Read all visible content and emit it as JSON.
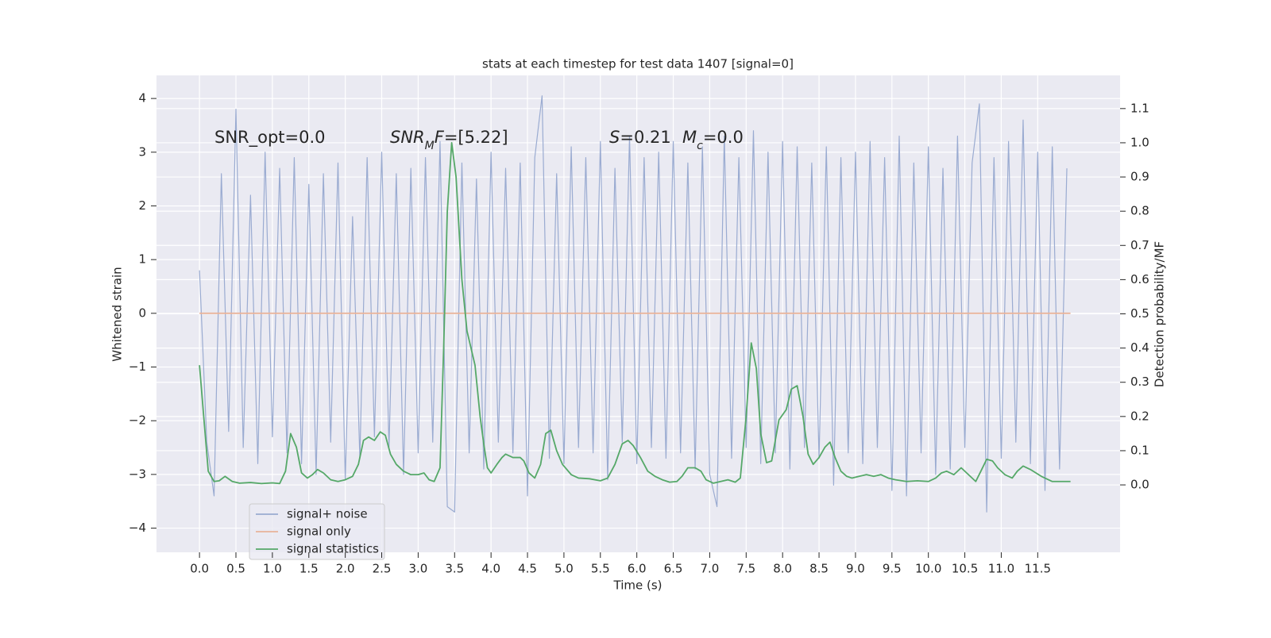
{
  "chart_data": {
    "type": "line",
    "title": "stats at each timestep for test data 1407 [signal=0]",
    "xlabel": "Time (s)",
    "ylabel": "Whitened strain",
    "y2label": "Detection probability/MF",
    "xlim": [
      -0.59,
      12.63
    ],
    "ylim": [
      -4.45,
      4.43
    ],
    "y2lim": [
      -0.197,
      1.197
    ],
    "grid": true,
    "legend": "lower left",
    "xticks": [
      {
        "value": 0,
        "label": "0.0"
      },
      0.5,
      {
        "value": 1,
        "label": "1.0"
      },
      1.5,
      {
        "value": 2,
        "label": "2.0"
      },
      2.5,
      {
        "value": 3,
        "label": "3.0"
      },
      3.5,
      {
        "value": 4,
        "label": "4.0"
      },
      4.5,
      {
        "value": 5,
        "label": "5.0"
      },
      5.5,
      {
        "value": 6,
        "label": "6.0"
      },
      6.5,
      {
        "value": 7,
        "label": "7.0"
      },
      7.5,
      {
        "value": 8,
        "label": "8.0"
      },
      8.5,
      {
        "value": 9,
        "label": "9.0"
      },
      9.5,
      {
        "value": 10,
        "label": "10.0"
      },
      10.5,
      {
        "value": 11,
        "label": "11.0"
      },
      11.5
    ],
    "yticks": [
      {
        "value": -4,
        "label": "−4"
      },
      {
        "value": -3,
        "label": "−3"
      },
      {
        "value": -2,
        "label": "−2"
      },
      {
        "value": -1,
        "label": "−1"
      },
      0,
      1,
      2,
      3,
      4
    ],
    "y2ticks": [
      {
        "value": 0,
        "label": "0.0"
      },
      0.1,
      0.2,
      0.3,
      0.4,
      0.5,
      0.6,
      0.7,
      0.8,
      0.9,
      {
        "value": 1,
        "label": "1.0"
      },
      1.1
    ],
    "annotations": [
      [
        {
          "text": "SNR_opt=0.0"
        }
      ],
      [
        {
          "text": "SNR",
          "italic": true
        },
        {
          "text": "M",
          "italic": true,
          "sub": true
        },
        {
          "text": "F",
          "italic": true
        },
        {
          "text": "=[5.22]"
        }
      ],
      [
        {
          "text": "S",
          "italic": true
        },
        {
          "text": "=0.21"
        }
      ],
      [
        {
          "text": "M",
          "italic": true
        },
        {
          "text": "c",
          "italic": true,
          "sub": true
        },
        {
          "text": "=0.0"
        }
      ]
    ],
    "series": [
      {
        "name": "signal+ noise",
        "color": "#9aabd1",
        "axis": "y",
        "x": [
          0,
          0.1,
          0.2,
          0.3,
          0.4,
          0.5,
          0.6,
          0.7,
          0.8,
          0.9,
          1,
          1.1,
          1.2,
          1.3,
          1.4,
          1.5,
          1.6,
          1.7,
          1.8,
          1.9,
          2,
          2.1,
          2.2,
          2.3,
          2.4,
          2.5,
          2.6,
          2.7,
          2.8,
          2.9,
          3,
          3.1,
          3.2,
          3.3,
          3.4,
          3.5,
          3.6,
          3.7,
          3.8,
          3.9,
          4,
          4.1,
          4.2,
          4.3,
          4.4,
          4.5,
          4.6,
          4.7,
          4.8,
          4.9,
          5,
          5.1,
          5.2,
          5.3,
          5.4,
          5.5,
          5.6,
          5.7,
          5.8,
          5.9,
          6,
          6.1,
          6.2,
          6.3,
          6.4,
          6.5,
          6.6,
          6.7,
          6.8,
          6.9,
          7,
          7.1,
          7.2,
          7.3,
          7.4,
          7.5,
          7.6,
          7.7,
          7.8,
          7.9,
          8,
          8.1,
          8.2,
          8.3,
          8.4,
          8.5,
          8.6,
          8.7,
          8.8,
          8.9,
          9,
          9.1,
          9.2,
          9.3,
          9.4,
          9.5,
          9.6,
          9.7,
          9.8,
          9.9,
          10,
          10.1,
          10.2,
          10.3,
          10.4,
          10.5,
          10.6,
          10.7,
          10.8,
          10.9,
          11,
          11.1,
          11.2,
          11.3,
          11.4,
          11.5,
          11.6,
          11.7,
          11.8,
          11.9
        ],
        "values": [
          0.8,
          -2.4,
          -3.4,
          2.6,
          -2.2,
          3.8,
          -2.5,
          2.2,
          -2.8,
          3.0,
          -2.3,
          2.7,
          -2.6,
          2.9,
          -2.8,
          2.4,
          -3.0,
          2.6,
          -2.4,
          2.8,
          -3.1,
          1.8,
          -2.7,
          2.9,
          -2.3,
          3.0,
          -2.5,
          2.6,
          -3.0,
          2.7,
          -2.6,
          2.9,
          -2.4,
          3.2,
          -3.6,
          -3.7,
          2.8,
          -2.6,
          2.5,
          -2.9,
          3.0,
          -2.4,
          2.7,
          -2.6,
          2.8,
          -3.4,
          2.9,
          4.05,
          -2.7,
          2.6,
          -2.8,
          3.1,
          -2.5,
          2.9,
          -2.6,
          3.2,
          -3.1,
          2.7,
          -2.4,
          3.3,
          -2.8,
          2.9,
          -2.5,
          3.0,
          -2.7,
          3.2,
          -2.6,
          2.8,
          -2.9,
          3.1,
          -3.0,
          -3.6,
          3.3,
          -2.7,
          2.9,
          -2.5,
          3.4,
          -2.8,
          3.0,
          -2.6,
          3.2,
          -2.9,
          3.1,
          -2.5,
          2.8,
          -2.7,
          3.1,
          -3.2,
          2.9,
          -2.6,
          3.0,
          -2.8,
          3.2,
          -2.5,
          2.9,
          -3.3,
          3.3,
          -3.4,
          2.8,
          -2.6,
          3.1,
          -3.0,
          2.7,
          -2.9,
          3.3,
          -2.5,
          2.8,
          3.9,
          -3.7,
          2.9,
          -2.7,
          3.2,
          -2.4,
          3.6,
          -2.8,
          3.0,
          -3.3,
          3.1,
          -2.9,
          2.7
        ]
      },
      {
        "name": "signal only",
        "color": "#e8b39a",
        "axis": "y",
        "x": [
          0,
          11.95
        ],
        "values": [
          0,
          0
        ]
      },
      {
        "name": "signal statistics",
        "color": "#55a868",
        "axis": "y2",
        "x": [
          0,
          0.05,
          0.12,
          0.2,
          0.27,
          0.35,
          0.45,
          0.55,
          0.7,
          0.85,
          1,
          1.1,
          1.18,
          1.25,
          1.33,
          1.4,
          1.48,
          1.55,
          1.62,
          1.7,
          1.8,
          1.9,
          2,
          2.1,
          2.18,
          2.25,
          2.32,
          2.4,
          2.48,
          2.55,
          2.62,
          2.7,
          2.8,
          2.9,
          3,
          3.08,
          3.15,
          3.22,
          3.3,
          3.35,
          3.4,
          3.46,
          3.52,
          3.6,
          3.67,
          3.78,
          3.85,
          3.9,
          3.95,
          4,
          4.08,
          4.15,
          4.2,
          4.3,
          4.4,
          4.45,
          4.52,
          4.6,
          4.68,
          4.75,
          4.82,
          4.9,
          4.98,
          5.1,
          5.2,
          5.35,
          5.5,
          5.6,
          5.7,
          5.8,
          5.88,
          5.95,
          6.05,
          6.15,
          6.25,
          6.35,
          6.45,
          6.55,
          6.62,
          6.7,
          6.8,
          6.88,
          6.95,
          7.05,
          7.15,
          7.25,
          7.35,
          7.42,
          7.5,
          7.57,
          7.64,
          7.7,
          7.78,
          7.85,
          7.95,
          8.05,
          8.12,
          8.2,
          8.28,
          8.35,
          8.42,
          8.5,
          8.58,
          8.65,
          8.72,
          8.8,
          8.88,
          8.95,
          9.05,
          9.15,
          9.25,
          9.35,
          9.45,
          9.55,
          9.7,
          9.85,
          10,
          10.1,
          10.18,
          10.25,
          10.35,
          10.45,
          10.55,
          10.65,
          10.72,
          10.8,
          10.88,
          10.95,
          11.05,
          11.15,
          11.22,
          11.3,
          11.4,
          11.55,
          11.7,
          11.85,
          11.95
        ],
        "values": [
          0.35,
          0.22,
          0.04,
          0.01,
          0.012,
          0.025,
          0.01,
          0.005,
          0.007,
          0.004,
          0.006,
          0.004,
          0.04,
          0.15,
          0.11,
          0.035,
          0.02,
          0.03,
          0.045,
          0.035,
          0.015,
          0.01,
          0.015,
          0.025,
          0.06,
          0.13,
          0.14,
          0.13,
          0.155,
          0.145,
          0.09,
          0.06,
          0.04,
          0.03,
          0.03,
          0.035,
          0.015,
          0.01,
          0.05,
          0.4,
          0.8,
          1.0,
          0.9,
          0.6,
          0.45,
          0.35,
          0.2,
          0.12,
          0.05,
          0.035,
          0.06,
          0.08,
          0.09,
          0.08,
          0.08,
          0.07,
          0.035,
          0.02,
          0.06,
          0.15,
          0.16,
          0.1,
          0.06,
          0.03,
          0.02,
          0.018,
          0.012,
          0.02,
          0.06,
          0.12,
          0.13,
          0.115,
          0.08,
          0.04,
          0.025,
          0.015,
          0.008,
          0.01,
          0.025,
          0.05,
          0.05,
          0.04,
          0.015,
          0.005,
          0.01,
          0.015,
          0.008,
          0.02,
          0.2,
          0.415,
          0.34,
          0.15,
          0.065,
          0.07,
          0.19,
          0.22,
          0.28,
          0.29,
          0.2,
          0.09,
          0.06,
          0.08,
          0.11,
          0.125,
          0.08,
          0.04,
          0.025,
          0.02,
          0.025,
          0.03,
          0.025,
          0.03,
          0.02,
          0.015,
          0.01,
          0.012,
          0.01,
          0.02,
          0.035,
          0.04,
          0.03,
          0.05,
          0.03,
          0.01,
          0.04,
          0.075,
          0.07,
          0.05,
          0.03,
          0.02,
          0.04,
          0.055,
          0.045,
          0.025,
          0.01,
          0.01,
          0.01
        ]
      }
    ]
  }
}
